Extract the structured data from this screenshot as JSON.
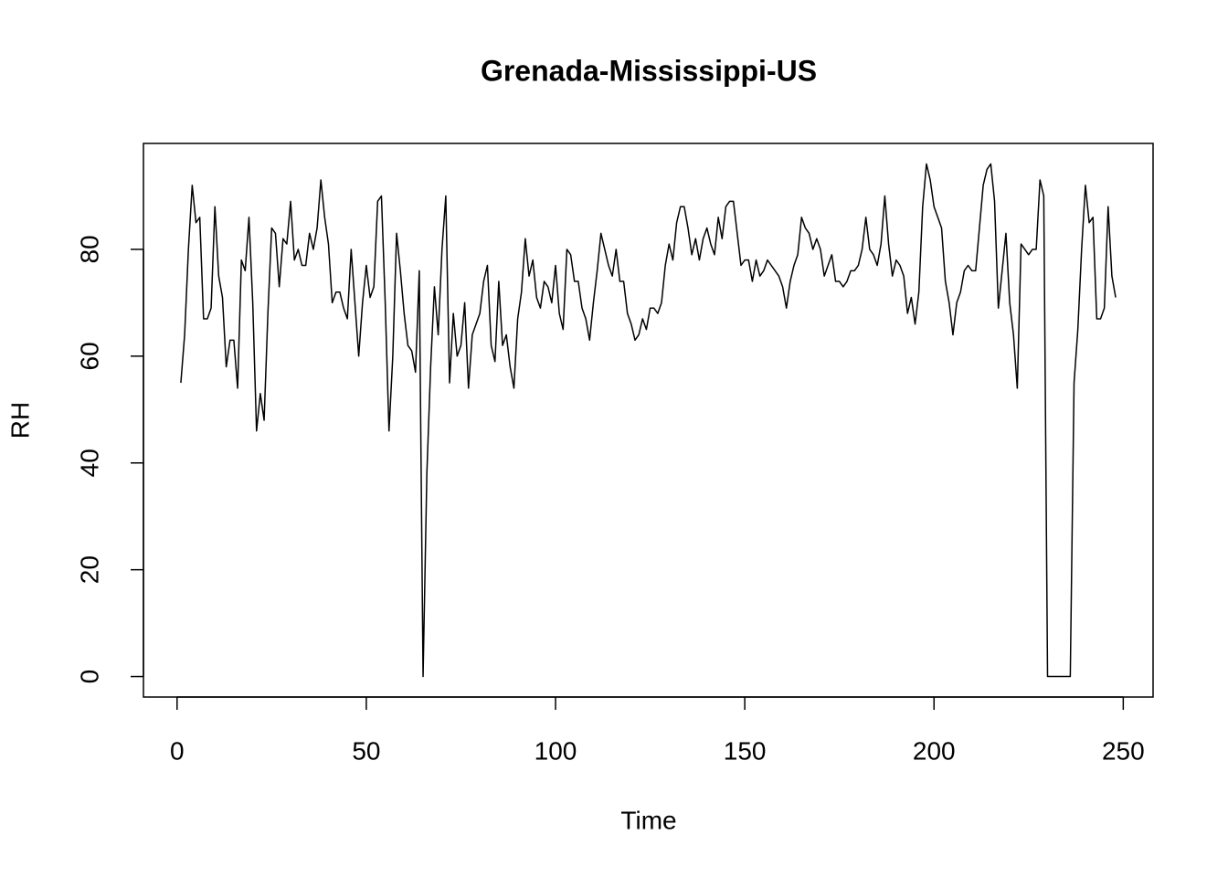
{
  "chart_data": {
    "type": "line",
    "title": "Grenada-Mississippi-US",
    "x_label": "Time",
    "y_label": "RH",
    "color": "#000000",
    "x": [
      1,
      2,
      3,
      4,
      5,
      6,
      7,
      8,
      9,
      10,
      11,
      12,
      13,
      14,
      15,
      16,
      17,
      18,
      19,
      20,
      21,
      22,
      23,
      24,
      25,
      26,
      27,
      28,
      29,
      30,
      31,
      32,
      33,
      34,
      35,
      36,
      37,
      38,
      39,
      40,
      41,
      42,
      43,
      44,
      45,
      46,
      47,
      48,
      49,
      50,
      51,
      52,
      53,
      54,
      55,
      56,
      57,
      58,
      59,
      60,
      61,
      62,
      63,
      64,
      65,
      66,
      67,
      68,
      69,
      70,
      71,
      72,
      73,
      74,
      75,
      76,
      77,
      78,
      79,
      80,
      81,
      82,
      83,
      84,
      85,
      86,
      87,
      88,
      89,
      90,
      91,
      92,
      93,
      94,
      95,
      96,
      97,
      98,
      99,
      100,
      101,
      102,
      103,
      104,
      105,
      106,
      107,
      108,
      109,
      110,
      111,
      112,
      113,
      114,
      115,
      116,
      117,
      118,
      119,
      120,
      121,
      122,
      123,
      124,
      125,
      126,
      127,
      128,
      129,
      130,
      131,
      132,
      133,
      134,
      135,
      136,
      137,
      138,
      139,
      140,
      141,
      142,
      143,
      144,
      145,
      146,
      147,
      148,
      149,
      150,
      151,
      152,
      153,
      154,
      155,
      156,
      157,
      158,
      159,
      160,
      161,
      162,
      163,
      164,
      165,
      166,
      167,
      168,
      169,
      170,
      171,
      172,
      173,
      174,
      175,
      176,
      177,
      178,
      179,
      180,
      181,
      182,
      183,
      184,
      185,
      186,
      187,
      188,
      189,
      190,
      191,
      192,
      193,
      194,
      195,
      196,
      197,
      198,
      199,
      200,
      201,
      202,
      203,
      204,
      205,
      206,
      207,
      208,
      209,
      210,
      211,
      212,
      213,
      214,
      215,
      216,
      217,
      218,
      219,
      220,
      221,
      222,
      223,
      224,
      225,
      226,
      227,
      228,
      229,
      230,
      231,
      232,
      233,
      234,
      235,
      236,
      237,
      238,
      239,
      240,
      241,
      242,
      243,
      244,
      245,
      246,
      247,
      248
    ],
    "values": [
      55,
      64,
      80,
      92,
      85,
      86,
      67,
      67,
      69,
      88,
      75,
      71,
      58,
      63,
      63,
      54,
      78,
      76,
      86,
      70,
      46,
      53,
      48,
      68,
      84,
      83,
      73,
      82,
      81,
      89,
      78,
      80,
      77,
      77,
      83,
      80,
      84,
      93,
      86,
      81,
      70,
      72,
      72,
      69,
      67,
      80,
      70,
      60,
      70,
      77,
      71,
      73,
      89,
      90,
      70,
      46,
      60,
      83,
      76,
      68,
      62,
      61,
      57,
      76,
      0,
      38,
      58,
      73,
      64,
      80,
      90,
      55,
      68,
      60,
      62,
      70,
      54,
      64,
      66,
      68,
      74,
      77,
      62,
      59,
      74,
      62,
      64,
      58,
      54,
      67,
      72,
      82,
      75,
      78,
      71,
      69,
      74,
      73,
      70,
      77,
      68,
      65,
      80,
      79,
      74,
      74,
      69,
      67,
      63,
      70,
      76,
      83,
      80,
      77,
      75,
      80,
      74,
      74,
      68,
      66,
      63,
      64,
      67,
      65,
      69,
      69,
      68,
      70,
      77,
      81,
      78,
      85,
      88,
      88,
      84,
      79,
      82,
      78,
      82,
      84,
      81,
      79,
      86,
      82,
      88,
      89,
      89,
      83,
      77,
      78,
      78,
      74,
      78,
      75,
      76,
      78,
      77,
      76,
      75,
      73,
      69,
      74,
      77,
      79,
      86,
      84,
      83,
      80,
      82,
      80,
      75,
      77,
      79,
      74,
      74,
      73,
      74,
      76,
      76,
      77,
      80,
      86,
      80,
      79,
      77,
      81,
      90,
      81,
      75,
      78,
      77,
      75,
      68,
      71,
      66,
      72,
      88,
      96,
      93,
      88,
      86,
      84,
      74,
      70,
      64,
      70,
      72,
      76,
      77,
      76,
      76,
      84,
      92,
      95,
      96,
      89,
      69,
      76,
      83,
      70,
      64,
      54,
      81,
      80,
      79,
      80,
      80,
      93,
      90,
      0,
      0,
      0,
      0,
      0,
      0,
      0,
      55,
      65,
      80,
      92,
      85,
      86,
      67,
      67,
      69,
      88,
      75,
      71
    ],
    "xlim": [
      -8.88,
      257.88
    ],
    "ylim": [
      -3.84,
      99.84
    ],
    "xticks": [
      0,
      50,
      100,
      150,
      200,
      250
    ],
    "yticks": [
      0,
      20,
      40,
      60,
      80
    ]
  }
}
